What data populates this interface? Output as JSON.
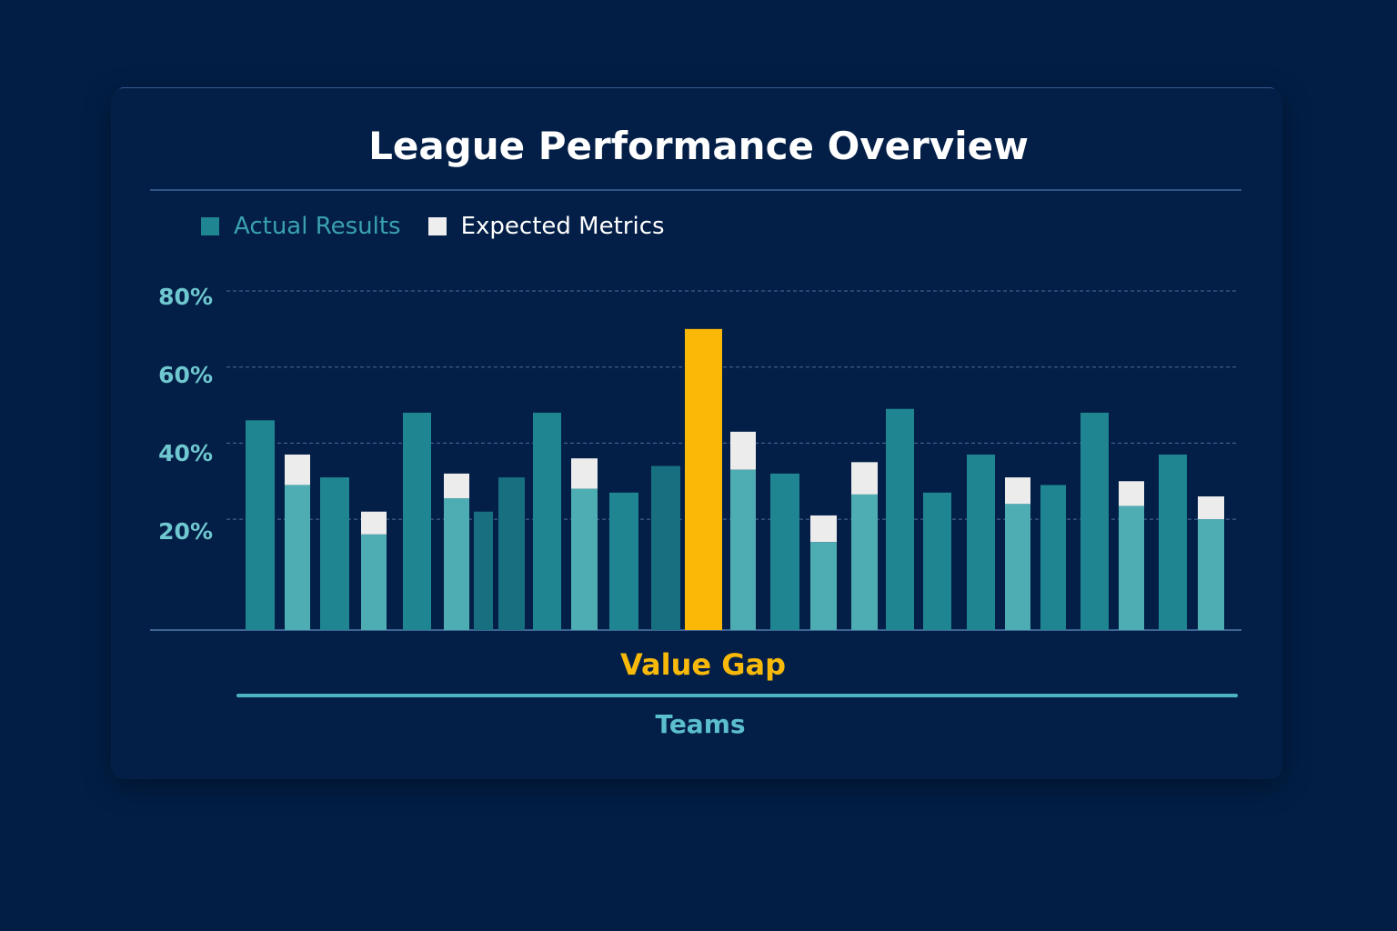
{
  "chart_data": {
    "type": "bar",
    "title": "League Performance Overview",
    "xlabel": "Teams",
    "ylabel": "",
    "ylim": [
      -9,
      80
    ],
    "yticks": [
      "80%",
      "60%",
      "40%",
      "20%"
    ],
    "ytick_values": [
      80,
      60,
      40,
      20
    ],
    "grid": true,
    "legend_placement": "top-left",
    "legend": [
      {
        "label": "Actual Results",
        "color": "#1f8591"
      },
      {
        "label": "Expected Metrics",
        "color": "#eeeeee"
      }
    ],
    "annotation": "Value Gap",
    "colors": {
      "dark": "#1f8591",
      "darker": "#176f80",
      "light": "#4eadb3",
      "expected": "#ececec",
      "highlight": "#fbb806"
    },
    "bars": [
      {
        "kind": "dark",
        "actual": 46
      },
      {
        "kind": "light",
        "actual": 29,
        "expected": 37
      },
      {
        "kind": "dark",
        "actual": 31
      },
      {
        "kind": "light",
        "actual": 16,
        "expected": 22
      },
      {
        "kind": "dark",
        "actual": 48
      },
      {
        "kind": "light",
        "actual": 25.5,
        "expected": 32
      },
      {
        "kind": "darker",
        "actual": 22
      },
      {
        "kind": "darker",
        "actual": 31
      },
      {
        "kind": "dark",
        "actual": 48
      },
      {
        "kind": "light",
        "actual": 28,
        "expected": 36
      },
      {
        "kind": "dark",
        "actual": 27
      },
      {
        "kind": "darker",
        "actual": 34
      },
      {
        "kind": "highlight",
        "actual": 70
      },
      {
        "kind": "light",
        "actual": 33,
        "expected": 43
      },
      {
        "kind": "dark",
        "actual": 32
      },
      {
        "kind": "light",
        "actual": 14,
        "expected": 21
      },
      {
        "kind": "light",
        "actual": 26.5,
        "expected": 35
      },
      {
        "kind": "dark",
        "actual": 49
      },
      {
        "kind": "dark",
        "actual": 27
      },
      {
        "kind": "dark",
        "actual": 37
      },
      {
        "kind": "light",
        "actual": 24,
        "expected": 31
      },
      {
        "kind": "dark",
        "actual": 29
      },
      {
        "kind": "dark",
        "actual": 48
      },
      {
        "kind": "light",
        "actual": 23.5,
        "expected": 30
      },
      {
        "kind": "dark",
        "actual": 37
      },
      {
        "kind": "light",
        "actual": 20,
        "expected": 26
      }
    ]
  }
}
